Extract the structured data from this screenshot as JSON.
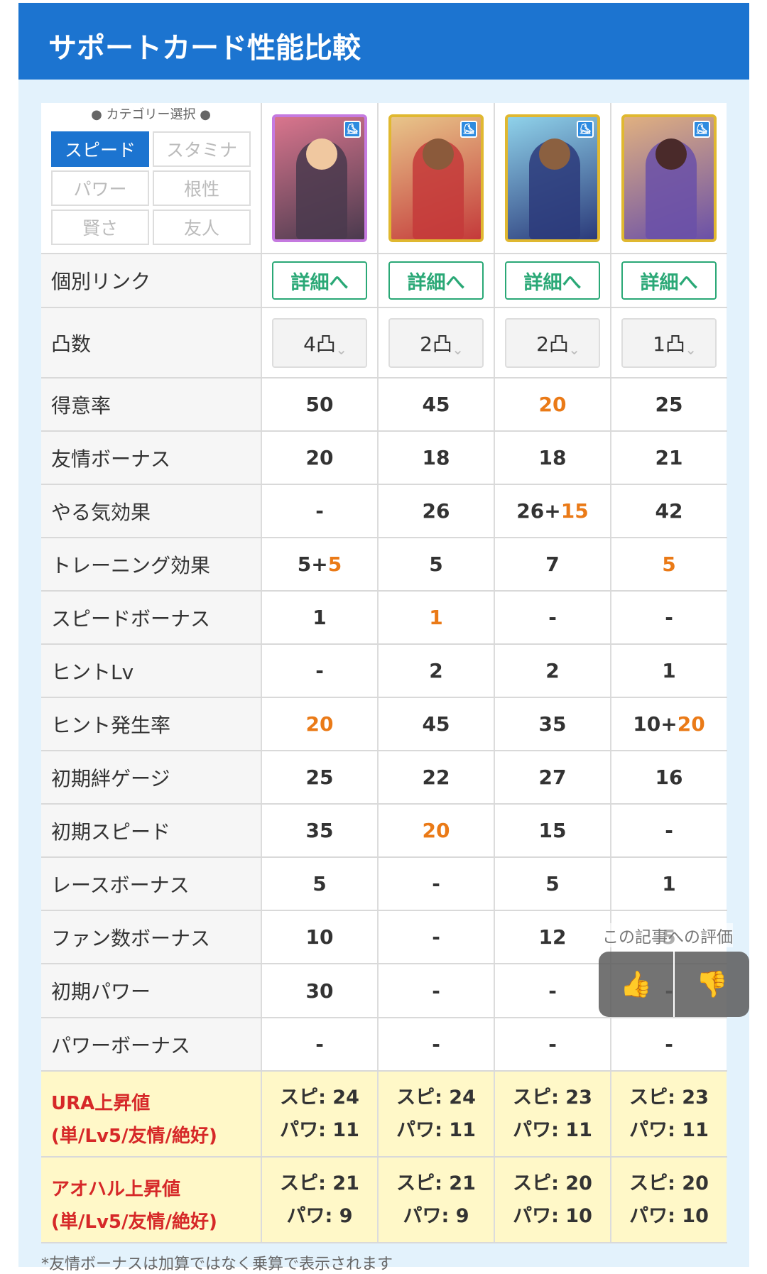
{
  "header": {
    "title": "サポートカード性能比較"
  },
  "category": {
    "title": "● カテゴリー選択 ●",
    "buttons": [
      "スピード",
      "スタミナ",
      "パワー",
      "根性",
      "賢さ",
      "友人"
    ],
    "active": "スピード"
  },
  "cards": [
    {
      "frame": "rainbow",
      "colors": [
        "#d9758d",
        "#4a3a4e",
        "#f0c8a0"
      ]
    },
    {
      "frame": "gold",
      "colors": [
        "#e8c58a",
        "#c43a3a",
        "#8b5a3b"
      ]
    },
    {
      "frame": "gold",
      "colors": [
        "#8fd2ea",
        "#2b3a7a",
        "#8b6040"
      ]
    },
    {
      "frame": "gold",
      "colors": [
        "#e0b080",
        "#6a50a8",
        "#4a2a2a"
      ]
    }
  ],
  "link_row": {
    "label": "個別リンク",
    "button": "詳細へ"
  },
  "limit_row": {
    "label": "凸数",
    "values": [
      "4凸",
      "2凸",
      "2凸",
      "1凸"
    ]
  },
  "rows": [
    {
      "label": "得意率",
      "cells": [
        [
          {
            "t": "50"
          }
        ],
        [
          {
            "t": "45"
          }
        ],
        [
          {
            "t": "20",
            "o": true
          }
        ],
        [
          {
            "t": "25"
          }
        ]
      ]
    },
    {
      "label": "友情ボーナス",
      "cells": [
        [
          {
            "t": "20"
          }
        ],
        [
          {
            "t": "18"
          }
        ],
        [
          {
            "t": "18"
          }
        ],
        [
          {
            "t": "21"
          }
        ]
      ]
    },
    {
      "label": "やる気効果",
      "cells": [
        [
          {
            "t": "-"
          }
        ],
        [
          {
            "t": "26"
          }
        ],
        [
          {
            "t": "26+"
          },
          {
            "t": "15",
            "o": true
          }
        ],
        [
          {
            "t": "42"
          }
        ]
      ]
    },
    {
      "label": "トレーニング効果",
      "cells": [
        [
          {
            "t": "5+"
          },
          {
            "t": "5",
            "o": true
          }
        ],
        [
          {
            "t": "5"
          }
        ],
        [
          {
            "t": "7"
          }
        ],
        [
          {
            "t": "5",
            "o": true
          }
        ]
      ]
    },
    {
      "label": "スピードボーナス",
      "cells": [
        [
          {
            "t": "1"
          }
        ],
        [
          {
            "t": "1",
            "o": true
          }
        ],
        [
          {
            "t": "-"
          }
        ],
        [
          {
            "t": "-"
          }
        ]
      ]
    },
    {
      "label": "ヒントLv",
      "cells": [
        [
          {
            "t": "-"
          }
        ],
        [
          {
            "t": "2"
          }
        ],
        [
          {
            "t": "2"
          }
        ],
        [
          {
            "t": "1"
          }
        ]
      ]
    },
    {
      "label": "ヒント発生率",
      "cells": [
        [
          {
            "t": "20",
            "o": true
          }
        ],
        [
          {
            "t": "45"
          }
        ],
        [
          {
            "t": "35"
          }
        ],
        [
          {
            "t": "10+"
          },
          {
            "t": "20",
            "o": true
          }
        ]
      ]
    },
    {
      "label": "初期絆ゲージ",
      "cells": [
        [
          {
            "t": "25"
          }
        ],
        [
          {
            "t": "22"
          }
        ],
        [
          {
            "t": "27"
          }
        ],
        [
          {
            "t": "16"
          }
        ]
      ]
    },
    {
      "label": "初期スピード",
      "cells": [
        [
          {
            "t": "35"
          }
        ],
        [
          {
            "t": "20",
            "o": true
          }
        ],
        [
          {
            "t": "15"
          }
        ],
        [
          {
            "t": "-"
          }
        ]
      ]
    },
    {
      "label": "レースボーナス",
      "cells": [
        [
          {
            "t": "5"
          }
        ],
        [
          {
            "t": "-"
          }
        ],
        [
          {
            "t": "5"
          }
        ],
        [
          {
            "t": "1"
          }
        ]
      ]
    },
    {
      "label": "ファン数ボーナス",
      "cells": [
        [
          {
            "t": "10"
          }
        ],
        [
          {
            "t": "-"
          }
        ],
        [
          {
            "t": "12"
          }
        ],
        [
          {
            "t": "5"
          }
        ]
      ]
    },
    {
      "label": "初期パワー",
      "cells": [
        [
          {
            "t": "30"
          }
        ],
        [
          {
            "t": "-"
          }
        ],
        [
          {
            "t": "-"
          }
        ],
        [
          {
            "t": "-"
          }
        ]
      ]
    },
    {
      "label": "パワーボーナス",
      "cells": [
        [
          {
            "t": "-"
          }
        ],
        [
          {
            "t": "-"
          }
        ],
        [
          {
            "t": "-"
          }
        ],
        [
          {
            "t": "-"
          }
        ]
      ]
    }
  ],
  "ura": {
    "label1": "URA上昇値",
    "label2": "(単/Lv5/友情/絶好)",
    "cells": [
      [
        "スピ: 24",
        "パワ: 11"
      ],
      [
        "スピ: 24",
        "パワ: 11"
      ],
      [
        "スピ: 23",
        "パワ: 11"
      ],
      [
        "スピ: 23",
        "パワ: 11"
      ]
    ]
  },
  "aoharu": {
    "label1": "アオハル上昇値",
    "label2": "(単/Lv5/友情/絶好)",
    "cells": [
      [
        "スピ: 21",
        "パワ: 9"
      ],
      [
        "スピ: 21",
        "パワ: 9"
      ],
      [
        "スピ: 20",
        "パワ: 10"
      ],
      [
        "スピ: 20",
        "パワ: 10"
      ]
    ]
  },
  "rating": {
    "label": "この記事への評価"
  },
  "footnote": "*友情ボーナスは加算ではなく乗算で表示されます"
}
